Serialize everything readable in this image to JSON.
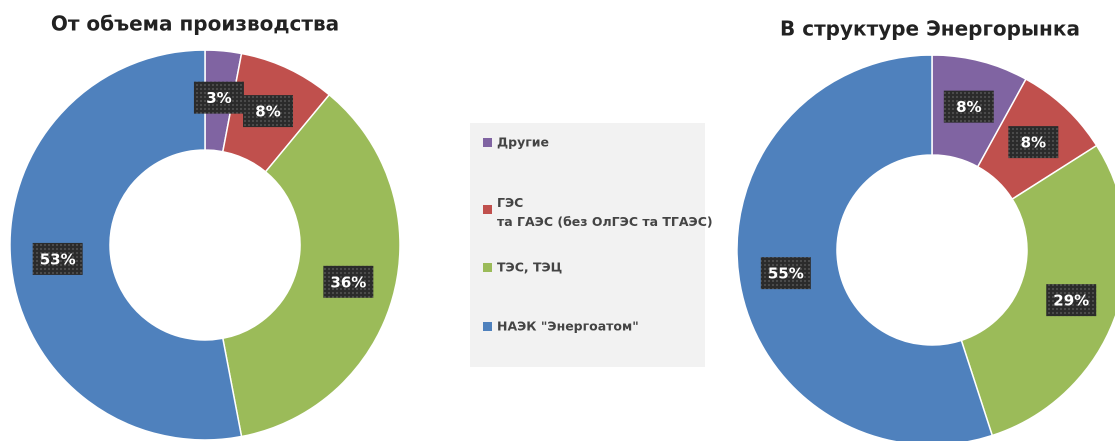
{
  "chart_data": [
    {
      "type": "donut",
      "title": "От объема производства",
      "categories": [
        "Другие",
        "ГЭС  та ГАЭС (без ОлГЭС та ТГАЭС)",
        "ТЭС, ТЭЦ",
        "НАЭК \"Энергоатом\""
      ],
      "values": [
        3,
        8,
        36,
        53
      ],
      "value_labels": [
        "3%",
        "8%",
        "36%",
        "53%"
      ],
      "colors": [
        "#8064a2",
        "#c0504d",
        "#9bbb59",
        "#4f81bd"
      ]
    },
    {
      "type": "donut",
      "title": "В структуре Энергорынка",
      "values": [
        8,
        8,
        29,
        55
      ],
      "value_labels": [
        "8%",
        "8%",
        "29%",
        "55%"
      ],
      "colors": [
        "#8064a2",
        "#c0504d",
        "#9bbb59",
        "#4f81bd"
      ]
    }
  ]
}
